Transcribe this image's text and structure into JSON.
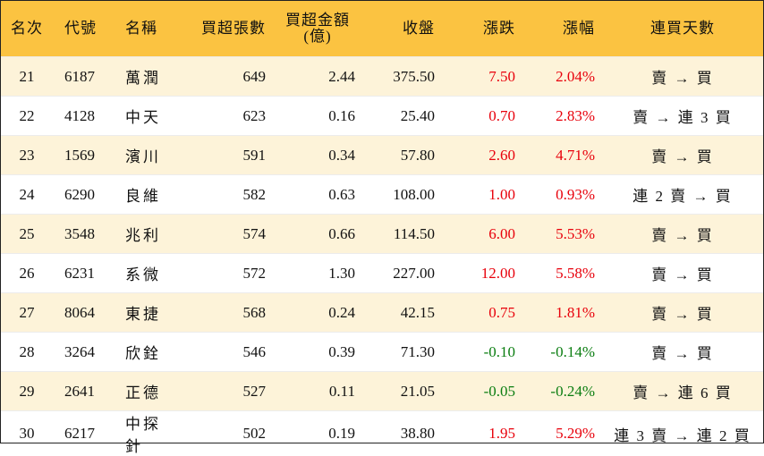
{
  "columns": {
    "rank": "名次",
    "code": "代號",
    "name": "名稱",
    "net_buy_lots": "買超張數",
    "net_buy_amount_line1": "買超金額",
    "net_buy_amount_line2": "(億)",
    "close": "收盤",
    "change": "漲跌",
    "change_pct": "漲幅",
    "streak": "連買天數"
  },
  "rows": [
    {
      "rank": "21",
      "code": "6187",
      "name": "萬潤",
      "lots": "649",
      "amount": "2.44",
      "close": "375.50",
      "change": "7.50",
      "pct": "2.04%",
      "direction": "up",
      "streak": "賣 → 買"
    },
    {
      "rank": "22",
      "code": "4128",
      "name": "中天",
      "lots": "623",
      "amount": "0.16",
      "close": "25.40",
      "change": "0.70",
      "pct": "2.83%",
      "direction": "up",
      "streak": "賣 → 連 3 買"
    },
    {
      "rank": "23",
      "code": "1569",
      "name": "濱川",
      "lots": "591",
      "amount": "0.34",
      "close": "57.80",
      "change": "2.60",
      "pct": "4.71%",
      "direction": "up",
      "streak": "賣 → 買"
    },
    {
      "rank": "24",
      "code": "6290",
      "name": "良維",
      "lots": "582",
      "amount": "0.63",
      "close": "108.00",
      "change": "1.00",
      "pct": "0.93%",
      "direction": "up",
      "streak": "連 2 賣 → 買"
    },
    {
      "rank": "25",
      "code": "3548",
      "name": "兆利",
      "lots": "574",
      "amount": "0.66",
      "close": "114.50",
      "change": "6.00",
      "pct": "5.53%",
      "direction": "up",
      "streak": "賣 → 買"
    },
    {
      "rank": "26",
      "code": "6231",
      "name": "系微",
      "lots": "572",
      "amount": "1.30",
      "close": "227.00",
      "change": "12.00",
      "pct": "5.58%",
      "direction": "up",
      "streak": "賣 → 買"
    },
    {
      "rank": "27",
      "code": "8064",
      "name": "東捷",
      "lots": "568",
      "amount": "0.24",
      "close": "42.15",
      "change": "0.75",
      "pct": "1.81%",
      "direction": "up",
      "streak": "賣 → 買"
    },
    {
      "rank": "28",
      "code": "3264",
      "name": "欣銓",
      "lots": "546",
      "amount": "0.39",
      "close": "71.30",
      "change": "-0.10",
      "pct": "-0.14%",
      "direction": "down",
      "streak": "賣 → 買"
    },
    {
      "rank": "29",
      "code": "2641",
      "name": "正德",
      "lots": "527",
      "amount": "0.11",
      "close": "21.05",
      "change": "-0.05",
      "pct": "-0.24%",
      "direction": "down",
      "streak": "賣 → 連 6 買"
    },
    {
      "rank": "30",
      "code": "6217",
      "name": "中探針",
      "lots": "502",
      "amount": "0.19",
      "close": "38.80",
      "change": "1.95",
      "pct": "5.29%",
      "direction": "up",
      "streak": "連 3 賣 → 連 2 買"
    }
  ],
  "colors": {
    "header_bg": "#fbc341",
    "row_shade": "#fdf3d9",
    "up": "#e8000b",
    "down": "#0a7d10"
  }
}
